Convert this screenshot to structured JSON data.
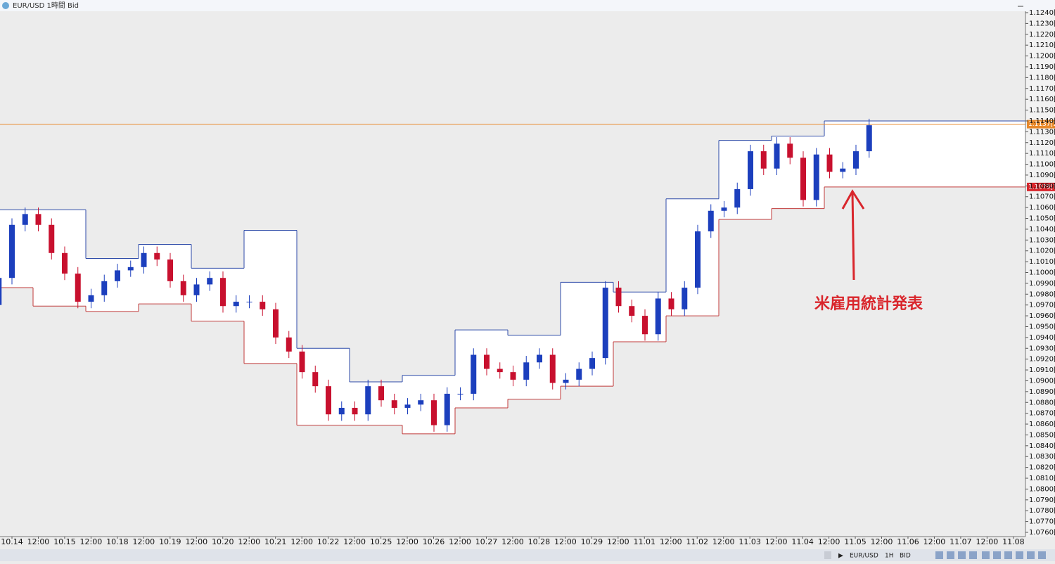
{
  "window": {
    "title": "EUR/USD 1時間 Bid"
  },
  "chart_data": {
    "type": "candlestick",
    "up_color": "#1c3fbd",
    "down_color": "#c8102e",
    "box_high_color": "#2d4aa8",
    "box_low_color": "#c03a3a",
    "ylim": [
      1.076,
      1.124
    ],
    "yticks": [
      {
        "value": 1.124,
        "label": "1.1240[0"
      },
      {
        "value": 1.123,
        "label": "1.1230[0"
      },
      {
        "value": 1.122,
        "label": "1.1220[0"
      },
      {
        "value": 1.121,
        "label": "1.1210[0"
      },
      {
        "value": 1.12,
        "label": "1.1200[0"
      },
      {
        "value": 1.119,
        "label": "1.1190[0"
      },
      {
        "value": 1.118,
        "label": "1.1180[0"
      },
      {
        "value": 1.117,
        "label": "1.1170[0"
      },
      {
        "value": 1.116,
        "label": "1.1160[0"
      },
      {
        "value": 1.115,
        "label": "1.1150[0"
      },
      {
        "value": 1.114,
        "label": "1.1140[0"
      },
      {
        "value": 1.113,
        "label": "1.1130[0"
      },
      {
        "value": 1.112,
        "label": "1.1120[0"
      },
      {
        "value": 1.111,
        "label": "1.1110[0"
      },
      {
        "value": 1.11,
        "label": "1.1100[0"
      },
      {
        "value": 1.109,
        "label": "1.1090[0"
      },
      {
        "value": 1.108,
        "label": "1.1080[0"
      },
      {
        "value": 1.107,
        "label": "1.1070[0"
      },
      {
        "value": 1.106,
        "label": "1.1060[0"
      },
      {
        "value": 1.105,
        "label": "1.1050[0"
      },
      {
        "value": 1.104,
        "label": "1.1040[0"
      },
      {
        "value": 1.103,
        "label": "1.1030[0"
      },
      {
        "value": 1.102,
        "label": "1.1020[0"
      },
      {
        "value": 1.101,
        "label": "1.1010[0"
      },
      {
        "value": 1.1,
        "label": "1.1000[0"
      },
      {
        "value": 1.099,
        "label": "1.0990[0"
      },
      {
        "value": 1.098,
        "label": "1.0980[0"
      },
      {
        "value": 1.097,
        "label": "1.0970[0"
      },
      {
        "value": 1.096,
        "label": "1.0960[0"
      },
      {
        "value": 1.095,
        "label": "1.0950[0"
      },
      {
        "value": 1.094,
        "label": "1.0940[0"
      },
      {
        "value": 1.093,
        "label": "1.0930[0"
      },
      {
        "value": 1.092,
        "label": "1.0920[0"
      },
      {
        "value": 1.091,
        "label": "1.0910[0"
      },
      {
        "value": 1.09,
        "label": "1.0900[0"
      },
      {
        "value": 1.089,
        "label": "1.0890[0"
      },
      {
        "value": 1.088,
        "label": "1.0880[0"
      },
      {
        "value": 1.087,
        "label": "1.0870[0"
      },
      {
        "value": 1.086,
        "label": "1.0860[0"
      },
      {
        "value": 1.085,
        "label": "1.0850[0"
      },
      {
        "value": 1.084,
        "label": "1.0840[0"
      },
      {
        "value": 1.083,
        "label": "1.0830[0"
      },
      {
        "value": 1.082,
        "label": "1.0820[0"
      },
      {
        "value": 1.081,
        "label": "1.0810[0"
      },
      {
        "value": 1.08,
        "label": "1.0800[0"
      },
      {
        "value": 1.079,
        "label": "1.0790[0"
      },
      {
        "value": 1.078,
        "label": "1.0780[0"
      },
      {
        "value": 1.077,
        "label": "1.0770[0"
      },
      {
        "value": 1.076,
        "label": "1.0760[0"
      }
    ],
    "x_labels": [
      "10.14",
      "12:00",
      "10.15",
      "12:00",
      "10.18",
      "12:00",
      "10.19",
      "12:00",
      "10.20",
      "12:00",
      "10.21",
      "12:00",
      "10.22",
      "12:00",
      "10.25",
      "12:00",
      "10.26",
      "12:00",
      "10.27",
      "12:00",
      "10.28",
      "12:00",
      "10.29",
      "12:00",
      "11.01",
      "12:00",
      "11.02",
      "12:00",
      "11.03",
      "12:00",
      "11.04",
      "12:00",
      "11.05",
      "12:00",
      "11.06",
      "12:00",
      "11.07",
      "12:00",
      "11.08"
    ],
    "candles": [
      [
        1.097,
        1.1001,
        1.0964,
        1.0995
      ],
      [
        1.0995,
        1.105,
        1.0989,
        1.1044
      ],
      [
        1.1044,
        1.106,
        1.1038,
        1.1054
      ],
      [
        1.1054,
        1.106,
        1.1038,
        1.1044
      ],
      [
        1.1044,
        1.105,
        1.1012,
        1.1018
      ],
      [
        1.1018,
        1.1024,
        1.0993,
        1.0999
      ],
      [
        1.0999,
        1.1005,
        1.0967,
        1.0973
      ],
      [
        1.0973,
        1.0985,
        1.0967,
        1.0979
      ],
      [
        1.0979,
        1.0998,
        1.0973,
        1.0992
      ],
      [
        1.0992,
        1.1008,
        1.0986,
        1.1002
      ],
      [
        1.1002,
        1.1011,
        1.0996,
        1.1005
      ],
      [
        1.1005,
        1.1024,
        1.0999,
        1.1018
      ],
      [
        1.1018,
        1.1024,
        1.1006,
        1.1012
      ],
      [
        1.1012,
        1.1018,
        1.0986,
        1.0992
      ],
      [
        1.0992,
        1.0998,
        1.0973,
        1.0979
      ],
      [
        1.0979,
        1.0995,
        1.0973,
        1.0989
      ],
      [
        1.0989,
        1.1001,
        1.0983,
        1.0995
      ],
      [
        1.0995,
        1.1001,
        1.0963,
        1.0969
      ],
      [
        1.0969,
        1.0979,
        1.0963,
        1.0973
      ],
      [
        1.0973,
        1.0979,
        1.0967,
        1.0973
      ],
      [
        1.0973,
        1.0979,
        1.096,
        1.0966
      ],
      [
        1.0966,
        1.0972,
        1.0934,
        1.094
      ],
      [
        1.094,
        1.0946,
        1.0921,
        1.0927
      ],
      [
        1.0927,
        1.0933,
        1.0902,
        1.0908
      ],
      [
        1.0908,
        1.0914,
        1.0889,
        1.0895
      ],
      [
        1.0895,
        1.0901,
        1.0863,
        1.0869
      ],
      [
        1.0869,
        1.0881,
        1.0863,
        1.0875
      ],
      [
        1.0875,
        1.0881,
        1.0863,
        1.0869
      ],
      [
        1.0869,
        1.0901,
        1.0863,
        1.0895
      ],
      [
        1.0895,
        1.0901,
        1.0876,
        1.0882
      ],
      [
        1.0882,
        1.0888,
        1.0869,
        1.0875
      ],
      [
        1.0875,
        1.0884,
        1.0869,
        1.0878
      ],
      [
        1.0878,
        1.0888,
        1.0872,
        1.0882
      ],
      [
        1.0882,
        1.0888,
        1.0853,
        1.0859
      ],
      [
        1.0859,
        1.0894,
        1.0853,
        1.0888
      ],
      [
        1.0888,
        1.0894,
        1.0882,
        1.0888
      ],
      [
        1.0888,
        1.093,
        1.0882,
        1.0924
      ],
      [
        1.0924,
        1.093,
        1.0905,
        1.0911
      ],
      [
        1.0911,
        1.0917,
        1.0902,
        1.0908
      ],
      [
        1.0908,
        1.0914,
        1.0895,
        1.0901
      ],
      [
        1.0901,
        1.0923,
        1.0895,
        1.0917
      ],
      [
        1.0917,
        1.093,
        1.0911,
        1.0924
      ],
      [
        1.0924,
        1.093,
        1.0892,
        1.0898
      ],
      [
        1.0898,
        1.0907,
        1.0892,
        1.0901
      ],
      [
        1.0901,
        1.0917,
        1.0895,
        1.0911
      ],
      [
        1.0911,
        1.0927,
        1.0905,
        1.0921
      ],
      [
        1.0921,
        1.0992,
        1.0915,
        1.0986
      ],
      [
        1.0986,
        1.0992,
        1.0963,
        1.0969
      ],
      [
        1.0969,
        1.0975,
        1.0954,
        1.096
      ],
      [
        1.096,
        1.0966,
        1.0937,
        1.0943
      ],
      [
        1.0943,
        1.0982,
        1.0937,
        1.0976
      ],
      [
        1.0976,
        1.0982,
        1.096,
        1.0966
      ],
      [
        1.0966,
        1.0992,
        1.096,
        1.0986
      ],
      [
        1.0986,
        1.1044,
        1.098,
        1.1038
      ],
      [
        1.1038,
        1.1063,
        1.1032,
        1.1057
      ],
      [
        1.1057,
        1.1066,
        1.1051,
        1.106
      ],
      [
        1.106,
        1.1083,
        1.1054,
        1.1077
      ],
      [
        1.1077,
        1.1118,
        1.1071,
        1.1112
      ],
      [
        1.1112,
        1.1118,
        1.109,
        1.1096
      ],
      [
        1.1096,
        1.1125,
        1.109,
        1.1119
      ],
      [
        1.1119,
        1.1125,
        1.11,
        1.1106
      ],
      [
        1.1106,
        1.1112,
        1.1061,
        1.1067
      ],
      [
        1.1067,
        1.1115,
        1.1061,
        1.1109
      ],
      [
        1.1109,
        1.1115,
        1.1087,
        1.1093
      ],
      [
        1.1093,
        1.1102,
        1.1087,
        1.1096
      ],
      [
        1.1096,
        1.1118,
        1.109,
        1.1112
      ],
      [
        1.1112,
        1.1142,
        1.1106,
        1.1136
      ]
    ],
    "boxes": {
      "high": [
        1.1058,
        1.1058,
        1.1013,
        1.1026,
        1.1004,
        1.1039,
        1.093,
        1.0899,
        1.0905,
        1.0947,
        1.0942,
        1.0991,
        1.0982,
        1.1068,
        1.1122,
        1.1126,
        1.114
      ],
      "low": [
        1.0986,
        1.0969,
        1.0964,
        1.0971,
        1.0955,
        1.0916,
        1.0859,
        1.0859,
        1.0851,
        1.0875,
        1.0883,
        1.0895,
        1.0936,
        1.096,
        1.1049,
        1.1059,
        1.1079
      ]
    },
    "price_lines": [
      {
        "value": 1.1137,
        "label": "1.1137[1]",
        "color": "#e8892b"
      },
      {
        "value": 1.1079,
        "label": "1.1079[1]",
        "color": "#d9262c"
      }
    ],
    "annotation": {
      "text": "米雇用統計発表",
      "color": "#d9262c"
    }
  },
  "toolbar": {
    "symbol": "EUR/USD",
    "timeframe": "1H",
    "price": "BID"
  }
}
